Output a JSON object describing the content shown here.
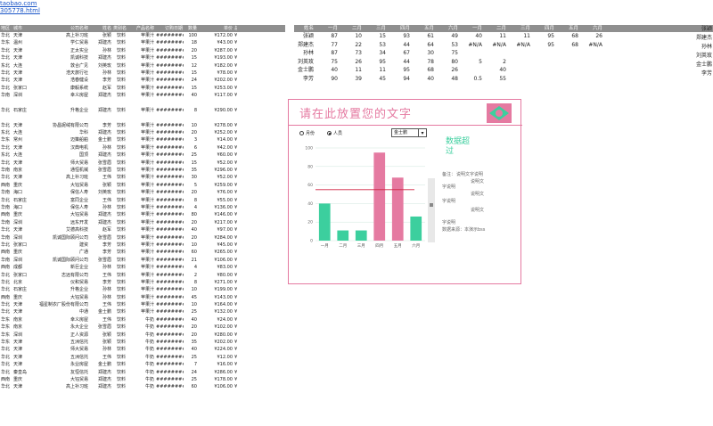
{
  "links": [
    "taobao.com",
    "305778.html"
  ],
  "sheet": {
    "headers": [
      "地区",
      "城市",
      "公司名称",
      "姓名",
      "类别名称",
      "产品名称",
      "订购日期",
      "数量",
      "单价",
      "总价"
    ],
    "rows": [
      [
        "华北",
        "天津",
        "高上补习班",
        "张颖",
        "饮料",
        "苹果汁",
        "#########",
        "100",
        "¥172.00",
        "¥17,200.00"
      ],
      [
        "华东",
        "温州",
        "学仁贸易",
        "郑建杰",
        "饮料",
        "苹果汁",
        "#########",
        "18",
        "¥43.00",
        "¥774.00"
      ],
      [
        "华北",
        "天津",
        "正太实业",
        "孙林",
        "饮料",
        "苹果汁",
        "#########",
        "20",
        "¥287.00",
        "¥5,740.00"
      ],
      [
        "华北",
        "天津",
        "凯诚科技",
        "郑建杰",
        "饮料",
        "苹果汁",
        "#########",
        "15",
        "¥193.00",
        "¥2,895.00"
      ],
      [
        "东北",
        "大连",
        "敦合广见",
        "刘英玫",
        "饮料",
        "苹果汁",
        "#########",
        "12",
        "¥182.00",
        "¥2,184.00"
      ],
      [
        "华北",
        "天津",
        "浩天旅行社",
        "孙林",
        "饮料",
        "苹果汁",
        "#########",
        "15",
        "¥78.00",
        "¥1,170.00"
      ],
      [
        "华北",
        "天津",
        "浩春健设",
        "李芳",
        "饮料",
        "苹果汁",
        "#########",
        "24",
        "¥202.00",
        "¥4,848.00"
      ],
      [
        "华北",
        "张家口",
        "康毅系统",
        "赵军",
        "饮料",
        "苹果汁",
        "#########",
        "15",
        "¥253.00",
        "¥3,795.00"
      ],
      [
        "华南",
        "深圳",
        "幸义房屋",
        "郑建杰",
        "饮料",
        "苹果汁",
        "#########",
        "40",
        "¥117.00",
        "¥4,680.00"
      ],
      [
        "",
        "",
        "",
        "",
        "",
        "",
        "",
        "",
        "",
        ""
      ],
      [
        "华北",
        "石家庄",
        "升格企业",
        "郑建杰",
        "饮料",
        "苹果汁",
        "#########",
        "8",
        "¥290.00",
        "¥2,320.00"
      ],
      [
        "",
        "",
        "",
        "",
        "",
        "",
        "",
        "",
        "",
        ""
      ],
      [
        "华北",
        "天津",
        "协昌妮绒有限公司",
        "李芳",
        "饮料",
        "苹果汁",
        "#########",
        "10",
        "¥278.00",
        "¥2,780.00"
      ],
      [
        "东北",
        "大连",
        "华科",
        "郑建杰",
        "饮料",
        "苹果汁",
        "#########",
        "20",
        "¥252.00",
        "¥5,040.00"
      ],
      [
        "华东",
        "常州",
        "迈策船舶",
        "金士鹏",
        "饮料",
        "苹果汁",
        "#########",
        "3",
        "¥14.00",
        "¥42.00"
      ],
      [
        "华北",
        "天津",
        "汉典电机",
        "孙林",
        "饮料",
        "苹果汁",
        "#########",
        "6",
        "¥42.00",
        "¥252.00"
      ],
      [
        "东北",
        "大连",
        "国顶",
        "郑建杰",
        "饮料",
        "苹果汁",
        "#########",
        "25",
        "¥60.00",
        "¥1,500.00"
      ],
      [
        "华北",
        "天津",
        "师大贸易",
        "张雪眉",
        "饮料",
        "苹果汁",
        "#########",
        "15",
        "¥52.00",
        "¥780.00"
      ],
      [
        "华南",
        "南京",
        "通恒机械",
        "张雪眉",
        "饮料",
        "苹果汁",
        "#########",
        "35",
        "¥296.00",
        "¥10,360.00"
      ],
      [
        "华北",
        "天津",
        "高上补习班",
        "王伟",
        "饮料",
        "苹果汁",
        "#########",
        "30",
        "¥52.00",
        "¥1,560.00"
      ],
      [
        "西南",
        "重庆",
        "大钰贸易",
        "张颖",
        "饮料",
        "苹果汁",
        "#########",
        "5",
        "¥259.00",
        "¥1,295.00"
      ],
      [
        "华南",
        "海口",
        "保信人寿",
        "刘英玫",
        "饮料",
        "苹果汁",
        "#########",
        "20",
        "¥76.00",
        "¥3,800.00"
      ],
      [
        "华北",
        "石家庄",
        "富同企业",
        "王伟",
        "饮料",
        "苹果汁",
        "#########",
        "8",
        "¥55.00",
        "¥440.00"
      ],
      [
        "华南",
        "海口",
        "保信人寿",
        "孙林",
        "饮料",
        "苹果汁",
        "#########",
        "4",
        "¥136.00",
        "¥544.00"
      ],
      [
        "西南",
        "重庆",
        "大钰贸易",
        "郑建杰",
        "饮料",
        "苹果汁",
        "#########",
        "80",
        "¥146.00",
        "¥11,680.00"
      ],
      [
        "华南",
        "深圳",
        "远东开发",
        "郑建杰",
        "饮料",
        "苹果汁",
        "#########",
        "20",
        "¥217.00",
        "¥4,340.00"
      ],
      [
        "华北",
        "天津",
        "艾德高科技",
        "赵军",
        "饮料",
        "苹果汁",
        "#########",
        "40",
        "¥97.00",
        "¥3,880.00"
      ],
      [
        "华南",
        "深圳",
        "凯诚国际顾问公司",
        "张雪眉",
        "饮料",
        "苹果汁",
        "#########",
        "20",
        "¥284.00",
        "¥5,680.00"
      ],
      [
        "华北",
        "张家口",
        "建资",
        "李芳",
        "饮料",
        "苹果汁",
        "#########",
        "10",
        "¥45.00",
        "¥450.00"
      ],
      [
        "西南",
        "重庆",
        "广通",
        "李芳",
        "饮料",
        "苹果汁",
        "#########",
        "60",
        "¥265.00",
        "¥15,900.00"
      ],
      [
        "华南",
        "深圳",
        "凯诚国际顾问公司",
        "张雪眉",
        "饮料",
        "苹果汁",
        "#########",
        "21",
        "¥106.00",
        "¥2,226.00"
      ],
      [
        "西南",
        "成都",
        "新巨企业",
        "孙林",
        "饮料",
        "苹果汁",
        "#########",
        "4",
        "¥83.00",
        "¥332.00"
      ],
      [
        "华北",
        "张家口",
        "志远有限公司",
        "王伟",
        "饮料",
        "苹果汁",
        "#########",
        "2",
        "¥80.00",
        "¥160.00"
      ],
      [
        "华北",
        "北京",
        "仪和贸易",
        "李芳",
        "饮料",
        "苹果汁",
        "#########",
        "8",
        "¥271.00",
        "¥2,168.00"
      ],
      [
        "华北",
        "石家庄",
        "升格企业",
        "孙林",
        "饮料",
        "苹果汁",
        "#########",
        "10",
        "¥199.00",
        "¥1,990.00"
      ],
      [
        "西南",
        "重庆",
        "大钰贸易",
        "孙林",
        "饮料",
        "苹果汁",
        "#########",
        "45",
        "¥143.00",
        "¥6,435.00"
      ],
      [
        "华北",
        "天津",
        "福星制衣厂股份有限公司",
        "王伟",
        "饮料",
        "苹果汁",
        "#########",
        "10",
        "¥164.00",
        "¥1,640.00"
      ],
      [
        "华北",
        "天津",
        "中通",
        "金士鹏",
        "饮料",
        "苹果汁",
        "#########",
        "25",
        "¥132.00",
        "¥3,300.00"
      ],
      [
        "华东",
        "南京",
        "幸义房屋",
        "王伟",
        "饮料",
        "牛奶",
        "#########",
        "40",
        "¥24.00",
        "¥960.00"
      ],
      [
        "华东",
        "南京",
        "永大企业",
        "张雪眉",
        "饮料",
        "牛奶",
        "#########",
        "20",
        "¥102.00",
        "¥2,040.00"
      ],
      [
        "华东",
        "深圳",
        "正人资源",
        "张颖",
        "饮料",
        "牛奶",
        "#########",
        "20",
        "¥280.00",
        "¥5,600.00"
      ],
      [
        "华东",
        "天津",
        "五洲信托",
        "张颖",
        "饮料",
        "牛奶",
        "#########",
        "35",
        "¥202.00",
        "¥7,070.00"
      ],
      [
        "华北",
        "天津",
        "师大贸易",
        "孙林",
        "饮料",
        "牛奶",
        "#########",
        "40",
        "¥224.00",
        "¥8,960.00"
      ],
      [
        "华北",
        "天津",
        "五洲信托",
        "王伟",
        "饮料",
        "牛奶",
        "#########",
        "25",
        "¥12.00",
        "¥300.00"
      ],
      [
        "华北",
        "天津",
        "永业房屋",
        "金士鹏",
        "饮料",
        "牛奶",
        "#########",
        "7",
        "¥16.00",
        "¥112.00"
      ],
      [
        "华北",
        "秦皇岛",
        "友恒信托",
        "郑建杰",
        "饮料",
        "牛奶",
        "#########",
        "24",
        "¥286.00",
        "¥6,864.00"
      ],
      [
        "西南",
        "重庆",
        "大钰贸易",
        "郑建杰",
        "饮料",
        "牛奶",
        "#########",
        "25",
        "¥178.00",
        "¥4,450.00"
      ],
      [
        "华北",
        "天津",
        "高上补习班",
        "郑建杰",
        "饮料",
        "牛奶",
        "#########",
        "60",
        "¥106.00",
        "¥6,360.00"
      ]
    ]
  },
  "summary": {
    "headers": [
      "姓名",
      "一月",
      "二月",
      "三月",
      "四月",
      "五月",
      "六月",
      "一月",
      "二月",
      "三月",
      "四月",
      "五月",
      "六月"
    ],
    "rows": [
      [
        "张颖",
        "87",
        "10",
        "15",
        "93",
        "61",
        "49",
        "40",
        "11",
        "11",
        "95",
        "68",
        "26"
      ],
      [
        "郑建杰",
        "77",
        "22",
        "53",
        "44",
        "64",
        "53",
        "#N/A",
        "#N/A",
        "#N/A",
        "95",
        "68",
        "#N/A"
      ],
      [
        "孙林",
        "87",
        "73",
        "34",
        "67",
        "30",
        "75",
        "",
        "",
        "",
        "",
        "",
        ""
      ],
      [
        "刘英玫",
        "75",
        "26",
        "95",
        "44",
        "78",
        "80",
        "5",
        "2",
        "",
        "",
        "",
        ""
      ],
      [
        "金士鹏",
        "40",
        "11",
        "11",
        "95",
        "68",
        "26",
        "",
        "40",
        "",
        "",
        "",
        ""
      ],
      [
        "李芳",
        "90",
        "39",
        "45",
        "94",
        "40",
        "48",
        "0.5",
        "55",
        "",
        "",
        "",
        ""
      ]
    ],
    "side_names": [
      "张颖",
      "郑建杰",
      "孙林",
      "刘英玫",
      "金士鹏",
      "李芳"
    ]
  },
  "dashboard": {
    "title": "请在此放置您的文字",
    "radio_month": "月份",
    "radio_person": "人员",
    "selected_person": "金士鹏",
    "callout": "数据超过",
    "note_label": "备注：",
    "note_text": "说明文字说明",
    "note_lines": [
      "说明文",
      "字说明",
      "说明文",
      "字说明",
      "说明文",
      "字说明"
    ],
    "footer_note": "数据来源：本演示bss",
    "accent": "#e57aa1",
    "green": "#3ccf9e"
  },
  "chart_data": {
    "type": "bar",
    "categories": [
      "一月",
      "二月",
      "三月",
      "四月",
      "五月",
      "六月"
    ],
    "values": [
      40,
      11,
      11,
      95,
      68,
      26
    ],
    "ylim": [
      0,
      100
    ],
    "threshold": 55,
    "colors": [
      "#3ccf9e",
      "#3ccf9e",
      "#3ccf9e",
      "#e57aa1",
      "#e57aa1",
      "#3ccf9e"
    ]
  }
}
